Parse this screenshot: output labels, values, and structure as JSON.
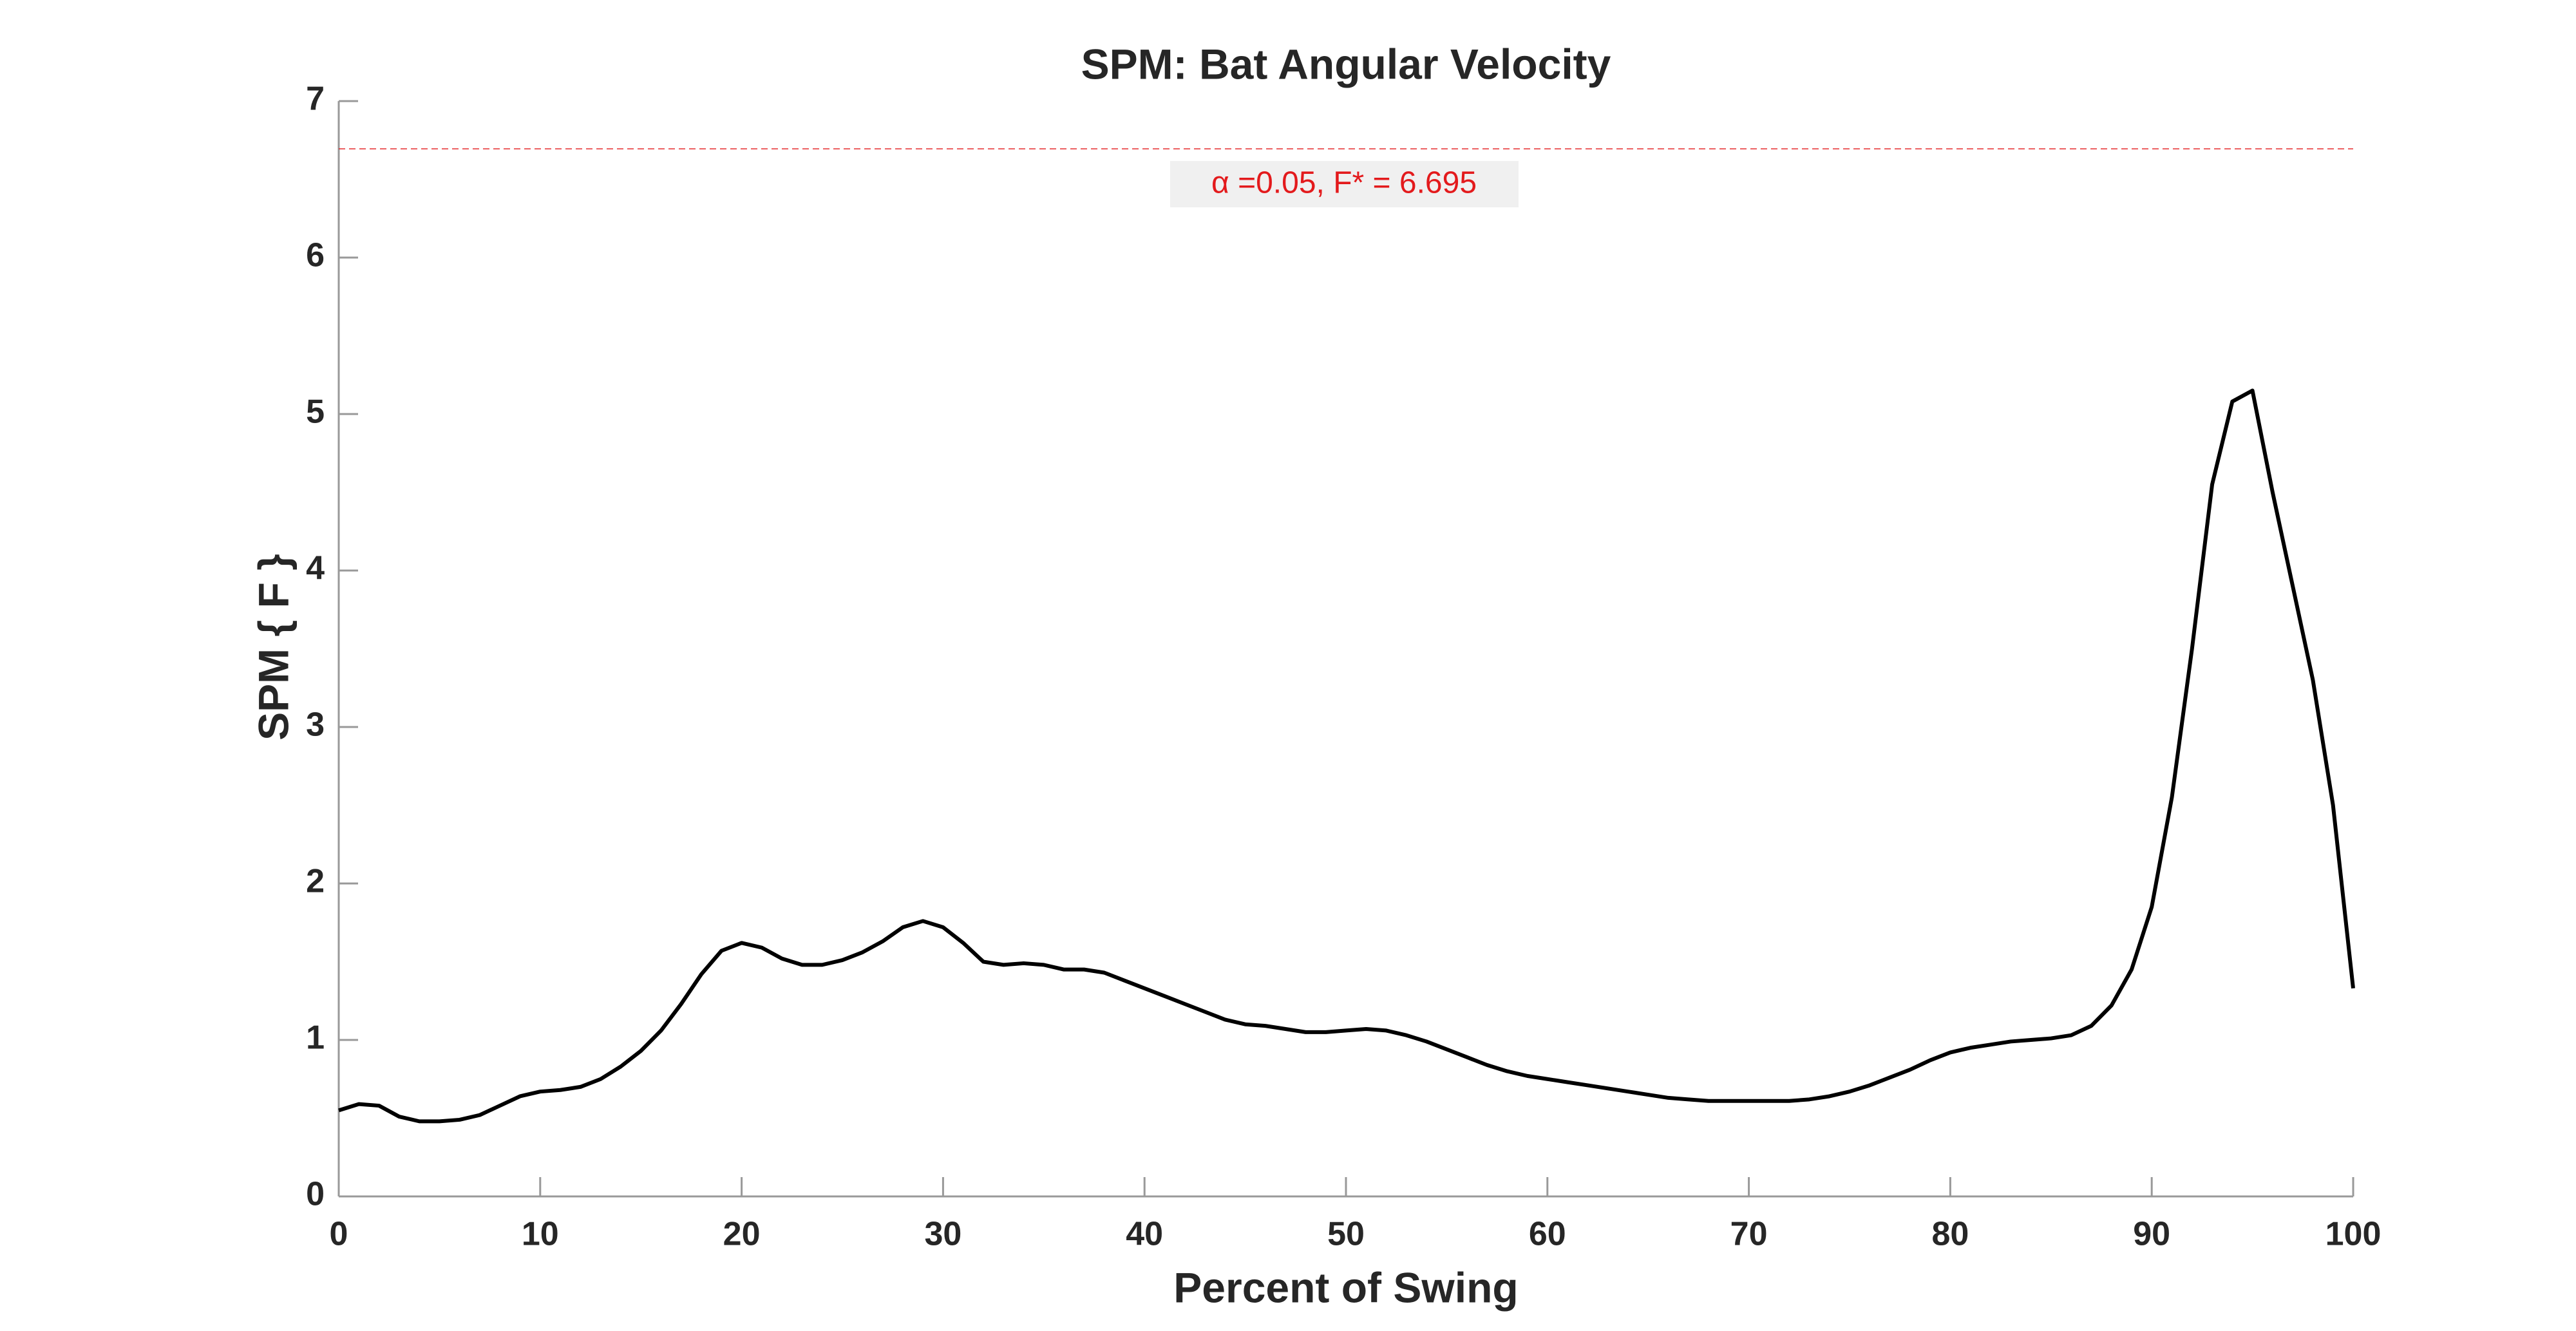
{
  "chart_data": {
    "type": "line",
    "title": "SPM: Bat Angular Velocity",
    "x_label": "Percent of Swing",
    "y_label": "SPM { F }",
    "x": [
      0,
      1,
      2,
      3,
      4,
      5,
      6,
      7,
      8,
      9,
      10,
      11,
      12,
      13,
      14,
      15,
      16,
      17,
      18,
      19,
      20,
      21,
      22,
      23,
      24,
      25,
      26,
      27,
      28,
      29,
      30,
      31,
      32,
      33,
      34,
      35,
      36,
      37,
      38,
      39,
      40,
      41,
      42,
      43,
      44,
      45,
      46,
      47,
      48,
      49,
      50,
      51,
      52,
      53,
      54,
      55,
      56,
      57,
      58,
      59,
      60,
      61,
      62,
      63,
      64,
      65,
      66,
      67,
      68,
      69,
      70,
      71,
      72,
      73,
      74,
      75,
      76,
      77,
      78,
      79,
      80,
      81,
      82,
      83,
      84,
      85,
      86,
      87,
      88,
      89,
      90,
      91,
      92,
      93,
      94,
      95,
      96,
      97,
      98,
      99,
      100
    ],
    "series": [
      {
        "name": "SPM",
        "color": "#000000",
        "values": [
          0.55,
          0.59,
          0.58,
          0.51,
          0.48,
          0.48,
          0.49,
          0.52,
          0.58,
          0.64,
          0.67,
          0.68,
          0.7,
          0.75,
          0.83,
          0.93,
          1.06,
          1.23,
          1.42,
          1.57,
          1.62,
          1.59,
          1.52,
          1.48,
          1.48,
          1.51,
          1.56,
          1.63,
          1.72,
          1.76,
          1.72,
          1.62,
          1.5,
          1.48,
          1.49,
          1.48,
          1.45,
          1.45,
          1.43,
          1.38,
          1.33,
          1.28,
          1.23,
          1.18,
          1.13,
          1.1,
          1.09,
          1.07,
          1.05,
          1.05,
          1.06,
          1.07,
          1.06,
          1.03,
          0.99,
          0.94,
          0.89,
          0.84,
          0.8,
          0.77,
          0.75,
          0.73,
          0.71,
          0.69,
          0.67,
          0.65,
          0.63,
          0.62,
          0.61,
          0.61,
          0.61,
          0.61,
          0.61,
          0.62,
          0.64,
          0.67,
          0.71,
          0.76,
          0.81,
          0.87,
          0.92,
          0.95,
          0.97,
          0.99,
          1.0,
          1.01,
          1.03,
          1.09,
          1.22,
          1.45,
          1.85,
          2.55,
          3.5,
          4.55,
          5.08,
          5.15,
          4.5,
          3.9,
          3.3,
          2.5,
          1.33
        ]
      }
    ],
    "threshold": {
      "value": 6.695,
      "label": "α  =0.05,     F* = 6.695",
      "color": "#e31a1c"
    },
    "xlim": [
      0,
      100
    ],
    "xticks": [
      0,
      10,
      20,
      30,
      40,
      50,
      60,
      70,
      80,
      90,
      100
    ],
    "ylim": [
      0,
      7
    ],
    "yticks": [
      0,
      1,
      2,
      3,
      4,
      5,
      6,
      7
    ]
  }
}
